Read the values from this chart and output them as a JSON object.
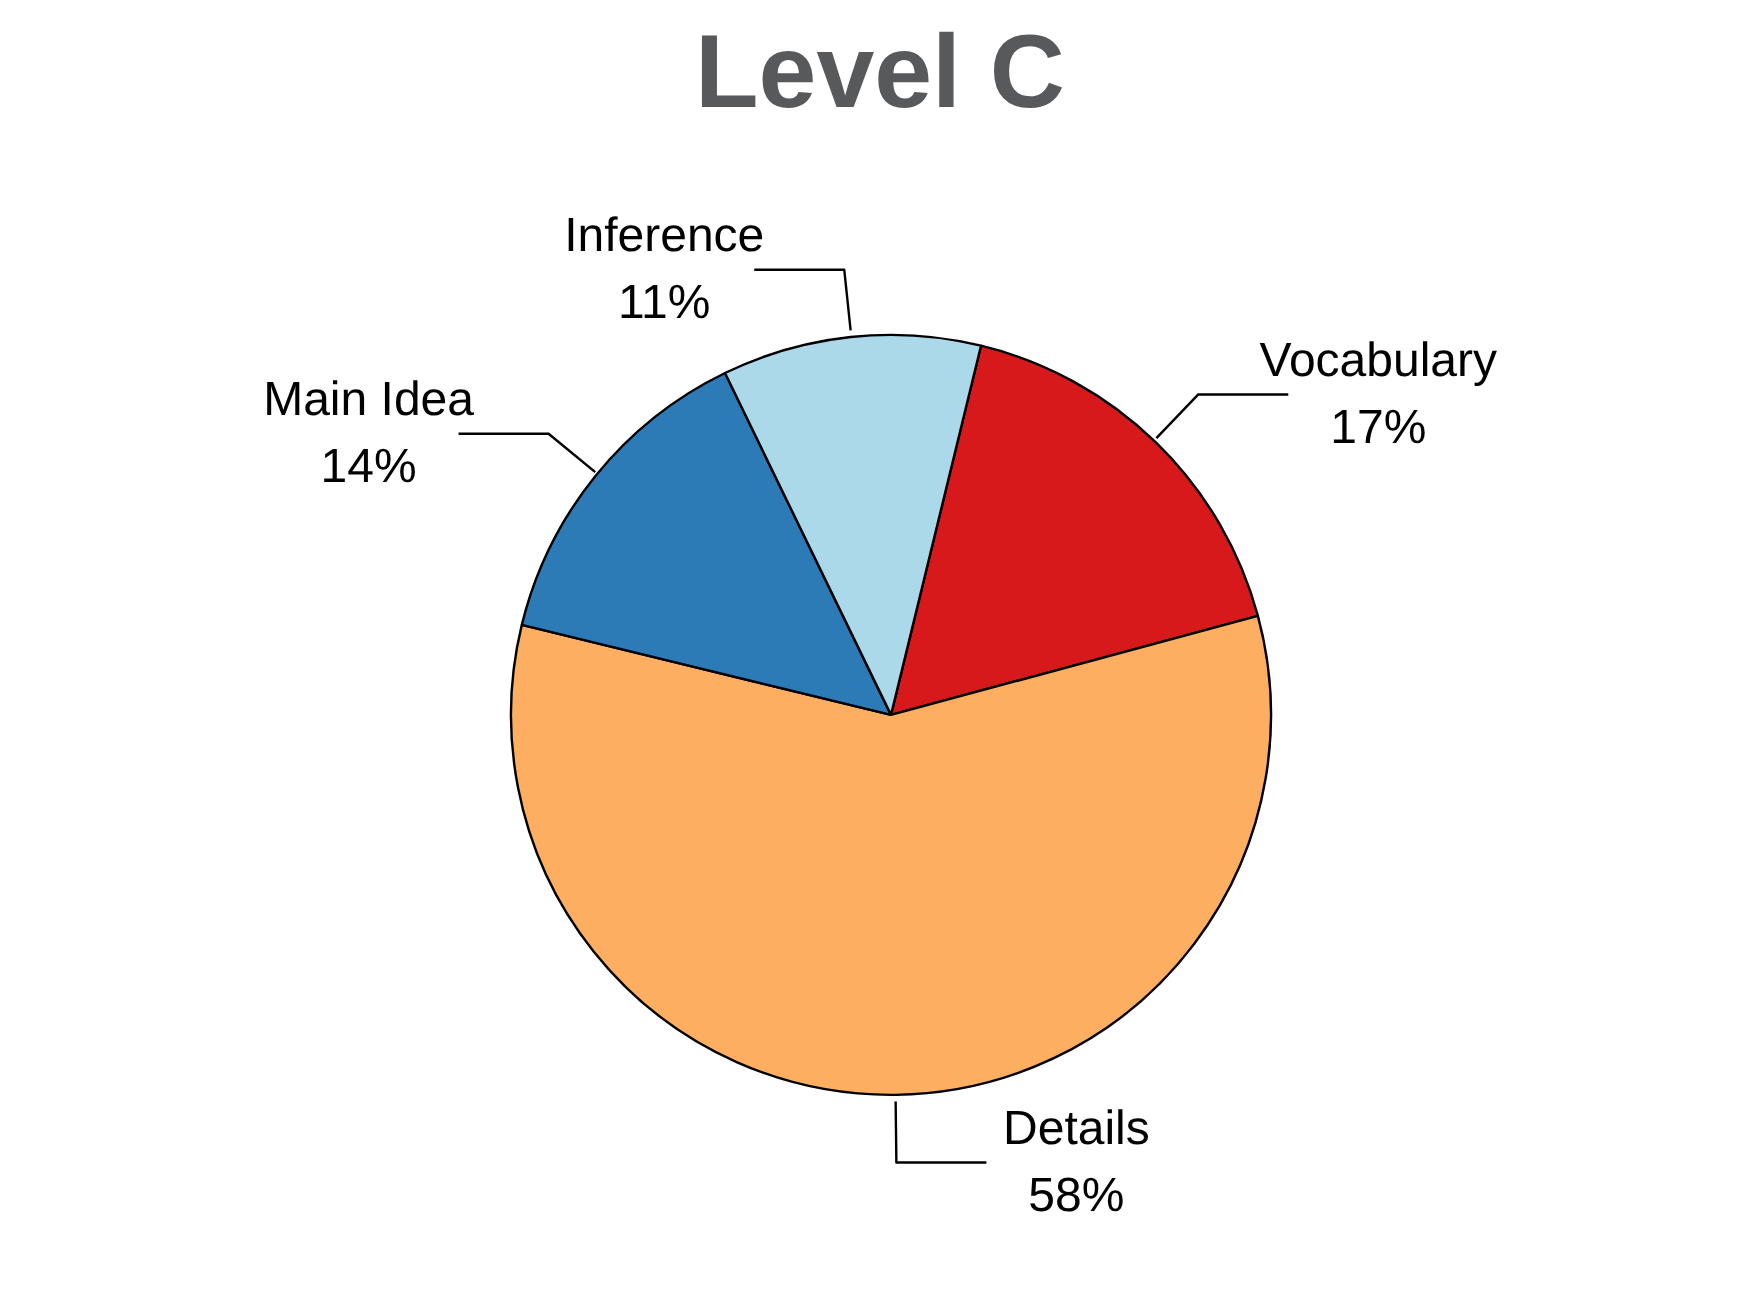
{
  "chart_data": {
    "type": "pie",
    "title": "Level C",
    "categories": [
      "Vocabulary",
      "Details",
      "Main Idea",
      "Inference"
    ],
    "values": [
      17,
      58,
      14,
      11
    ],
    "value_labels": [
      "17%",
      "58%",
      "14%",
      "11%"
    ],
    "colors": [
      "#d7191c",
      "#fdae61",
      "#2c7bb6",
      "#abd9e9"
    ]
  }
}
